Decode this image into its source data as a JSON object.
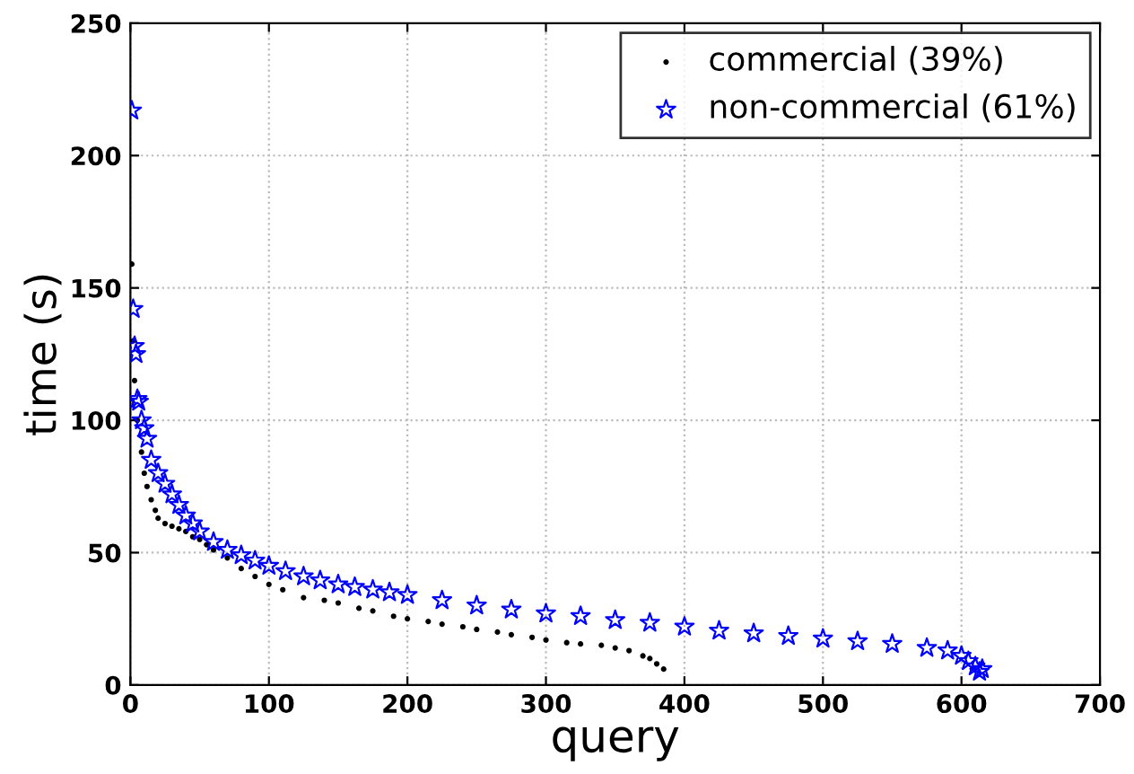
{
  "chart_data": {
    "type": "scatter",
    "xlabel": "query",
    "ylabel": "time (s)",
    "xlim": [
      0,
      700
    ],
    "ylim": [
      0,
      250
    ],
    "xticks": [
      0,
      100,
      200,
      300,
      400,
      500,
      600,
      700
    ],
    "yticks": [
      0,
      50,
      100,
      150,
      200,
      250
    ],
    "grid": true,
    "legend": "top right",
    "series": [
      {
        "name": "commercial (39%)",
        "color": "#000000",
        "marker": "point",
        "x": [
          1,
          2,
          3,
          5,
          8,
          10,
          12,
          15,
          18,
          20,
          25,
          30,
          35,
          40,
          45,
          50,
          55,
          60,
          70,
          80,
          90,
          100,
          110,
          125,
          140,
          150,
          165,
          175,
          190,
          200,
          215,
          225,
          240,
          250,
          265,
          275,
          290,
          300,
          315,
          325,
          340,
          350,
          360,
          370,
          375,
          380,
          385
        ],
        "values": [
          159,
          130,
          115,
          100,
          88,
          80,
          75,
          70,
          66,
          63,
          61,
          60,
          59,
          58,
          56,
          55,
          53,
          51,
          48,
          44,
          41,
          38,
          36,
          33,
          32,
          31,
          29,
          28,
          26,
          25,
          24,
          23,
          22,
          21,
          20,
          19,
          18,
          17,
          16,
          15.5,
          15,
          14,
          13,
          11,
          10,
          8,
          6
        ]
      },
      {
        "name": "non-commercial (61%)",
        "color": "#0000ff",
        "marker": "star",
        "x": [
          1,
          2,
          3,
          4,
          5,
          6,
          8,
          10,
          12,
          15,
          20,
          25,
          30,
          35,
          40,
          45,
          50,
          60,
          70,
          80,
          90,
          100,
          112,
          125,
          137,
          150,
          162,
          175,
          187,
          200,
          225,
          250,
          275,
          300,
          325,
          350,
          375,
          400,
          425,
          450,
          475,
          500,
          525,
          550,
          575,
          590,
          600,
          605,
          610,
          613,
          615
        ],
        "values": [
          217,
          142,
          128,
          125,
          108,
          107,
          100,
          97,
          93,
          85,
          80,
          76,
          72,
          68,
          64,
          61,
          58,
          54,
          51,
          49,
          47,
          45,
          43,
          41,
          39.5,
          38,
          37,
          36,
          35,
          34,
          32,
          30,
          28.5,
          27,
          26,
          24.5,
          23.5,
          22,
          20.5,
          19.5,
          18.5,
          17.5,
          16.5,
          15.5,
          14,
          13,
          11,
          9,
          7,
          5,
          6
        ]
      }
    ]
  }
}
